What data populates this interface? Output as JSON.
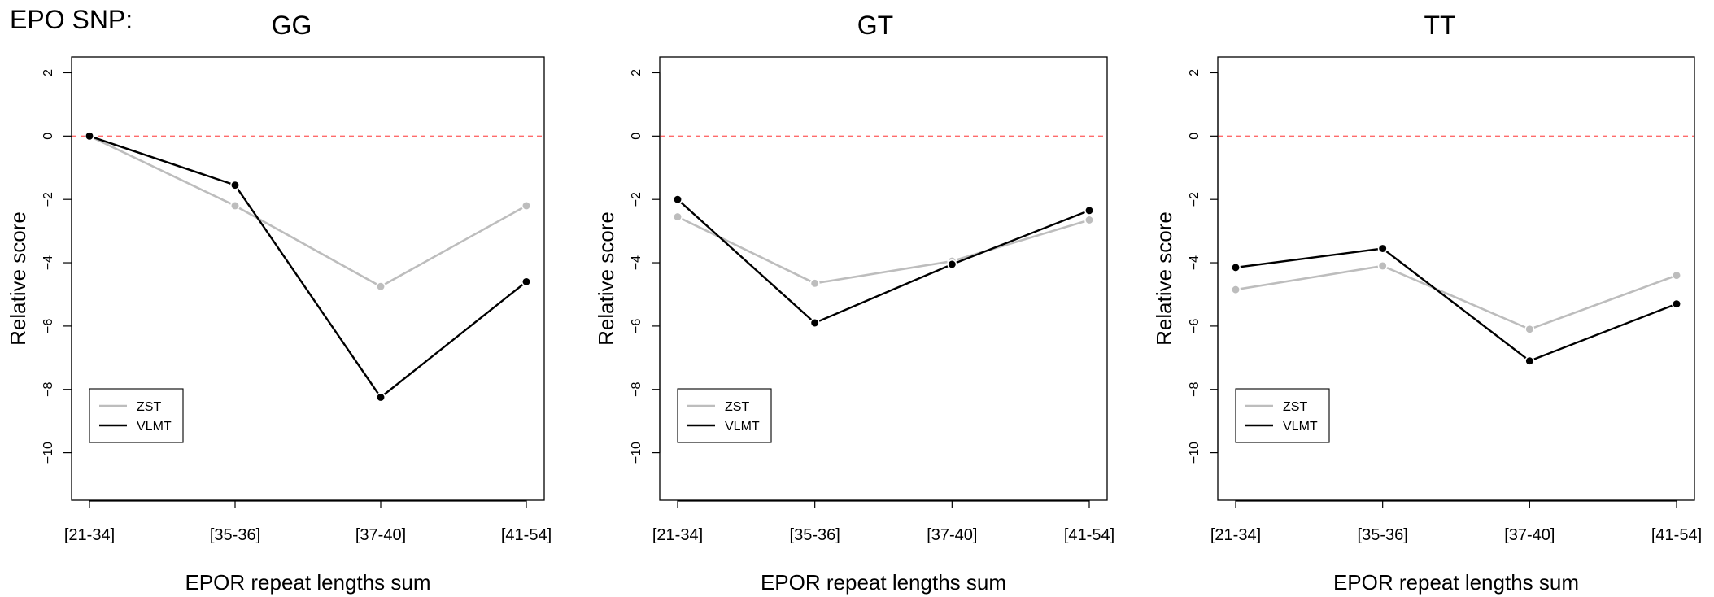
{
  "figure_label": "EPO SNP:",
  "colors": {
    "ZST": "#bdbdbd",
    "VLMT": "#000000",
    "reference_line": "#ff6b6b",
    "axis": "#000000"
  },
  "chart_data": [
    {
      "type": "line",
      "title": "GG",
      "xlabel": "EPOR repeat lengths sum",
      "ylabel": "Relative score",
      "categories": [
        "[21-34]",
        "[35-36]",
        "[37-40]",
        "[41-54]"
      ],
      "ylim": [
        -11.5,
        2.5
      ],
      "yticks": [
        2,
        0,
        -2,
        -4,
        -6,
        -8,
        -10
      ],
      "reference_line_y": 0,
      "legend_position": "bottom-left",
      "series": [
        {
          "name": "ZST",
          "color": "#bdbdbd",
          "values": [
            0,
            -2.2,
            -4.75,
            -2.2
          ]
        },
        {
          "name": "VLMT",
          "color": "#000000",
          "values": [
            0,
            -1.55,
            -8.25,
            -4.6
          ]
        }
      ]
    },
    {
      "type": "line",
      "title": "GT",
      "xlabel": "EPOR repeat lengths sum",
      "ylabel": "Relative score",
      "categories": [
        "[21-34]",
        "[35-36]",
        "[37-40]",
        "[41-54]"
      ],
      "ylim": [
        -11.5,
        2.5
      ],
      "yticks": [
        2,
        0,
        -2,
        -4,
        -6,
        -8,
        -10
      ],
      "reference_line_y": 0,
      "legend_position": "bottom-left",
      "series": [
        {
          "name": "ZST",
          "color": "#bdbdbd",
          "values": [
            -2.55,
            -4.65,
            -3.95,
            -2.65
          ]
        },
        {
          "name": "VLMT",
          "color": "#000000",
          "values": [
            -2.0,
            -5.9,
            -4.05,
            -2.35
          ]
        }
      ]
    },
    {
      "type": "line",
      "title": "TT",
      "xlabel": "EPOR repeat lengths sum",
      "ylabel": "Relative score",
      "categories": [
        "[21-34]",
        "[35-36]",
        "[37-40]",
        "[41-54]"
      ],
      "ylim": [
        -11.5,
        2.5
      ],
      "yticks": [
        2,
        0,
        -2,
        -4,
        -6,
        -8,
        -10
      ],
      "reference_line_y": 0,
      "legend_position": "bottom-left",
      "series": [
        {
          "name": "ZST",
          "color": "#bdbdbd",
          "values": [
            -4.85,
            -4.1,
            -6.1,
            -4.4
          ]
        },
        {
          "name": "VLMT",
          "color": "#000000",
          "values": [
            -4.15,
            -3.55,
            -7.1,
            -5.3
          ]
        }
      ]
    }
  ]
}
